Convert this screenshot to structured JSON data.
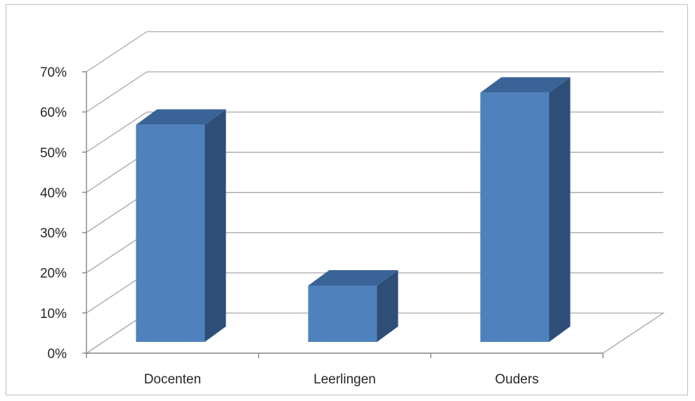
{
  "chart_data": {
    "type": "bar",
    "style": "3d-column",
    "categories": [
      "Docenten",
      "Leerlingen",
      "Ouders"
    ],
    "values": [
      54,
      14,
      62
    ],
    "yunit": "%",
    "ylim": [
      0,
      70
    ],
    "ytick_step": 10,
    "yticks": [
      "0%",
      "10%",
      "20%",
      "30%",
      "40%",
      "50%",
      "60%",
      "70%"
    ],
    "grid": true,
    "legend": "none",
    "colors": {
      "bar_front": "#4F81BD",
      "bar_side": "#2E4E77",
      "bar_top": "#3A6497",
      "grid": "#a6a6a6",
      "axis": "#8c8c8c"
    }
  }
}
